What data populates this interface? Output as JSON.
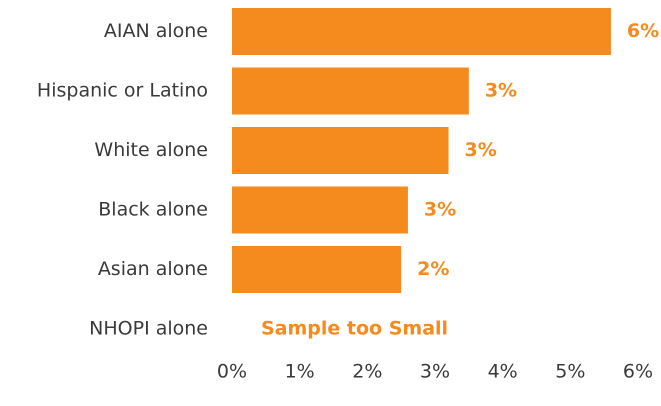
{
  "chart_data": {
    "type": "bar",
    "orientation": "horizontal",
    "categories": [
      "AIAN alone",
      "Hispanic or Latino",
      "White alone",
      "Black alone",
      "Asian alone",
      "NHOPI alone"
    ],
    "values": [
      5.6,
      3.5,
      3.2,
      2.6,
      2.5,
      null
    ],
    "data_labels": [
      "6%",
      "3%",
      "3%",
      "3%",
      "2%",
      "Sample too Small"
    ],
    "xticks": [
      0,
      1,
      2,
      3,
      4,
      5,
      6
    ],
    "xtick_labels": [
      "0%",
      "1%",
      "2%",
      "3%",
      "4%",
      "5%",
      "6%"
    ],
    "xlim": [
      0,
      6
    ],
    "grid": false,
    "legend": "none",
    "bar_color": "#F58A1F",
    "label_color": "#F58A1F",
    "title": "",
    "xlabel": "",
    "ylabel": ""
  }
}
